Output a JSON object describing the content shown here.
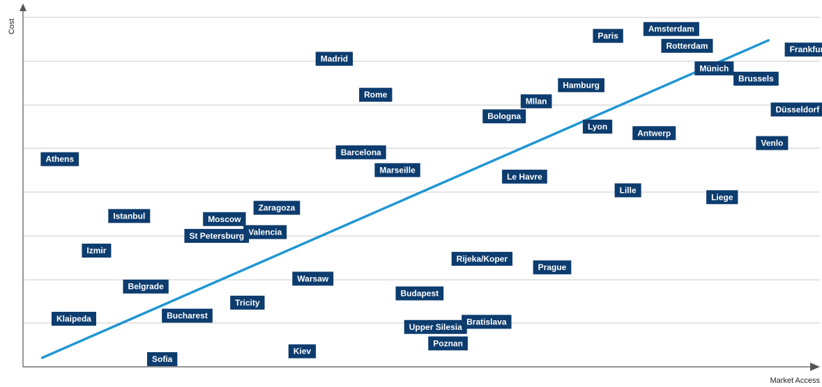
{
  "chart_data": {
    "type": "scatter",
    "title": "",
    "xlabel": "Market Access",
    "ylabel": "Cost",
    "xlim": [
      0,
      100
    ],
    "ylim": [
      0,
      100
    ],
    "grid": "horizontal",
    "colors": {
      "label_bg": "#0d3c6e",
      "trend": "#1f96d3",
      "grid": "#c8c8c8",
      "axis": "#555555"
    },
    "points": [
      {
        "name": "Amsterdam",
        "x": 78.8,
        "y": 96.4
      },
      {
        "name": "Paris",
        "x": 72.3,
        "y": 94.4
      },
      {
        "name": "Rotterdam",
        "x": 81.1,
        "y": 91.5
      },
      {
        "name": "Frankfurt",
        "x": 97.0,
        "y": 90.4
      },
      {
        "name": "Madrid",
        "x": 36.6,
        "y": 87.7
      },
      {
        "name": "Münich",
        "x": 85.4,
        "y": 84.9
      },
      {
        "name": "Brussels",
        "x": 90.4,
        "y": 81.9
      },
      {
        "name": "Hamburg",
        "x": 67.8,
        "y": 80.0
      },
      {
        "name": "Rome",
        "x": 42.2,
        "y": 77.2
      },
      {
        "name": "MIlan",
        "x": 63.0,
        "y": 75.3
      },
      {
        "name": "Düsseldorf",
        "x": 95.2,
        "y": 72.9
      },
      {
        "name": "Bologna",
        "x": 58.1,
        "y": 70.9
      },
      {
        "name": "Lyon",
        "x": 71.0,
        "y": 67.9
      },
      {
        "name": "Antwerp",
        "x": 77.4,
        "y": 66.0
      },
      {
        "name": "Venlo",
        "x": 93.3,
        "y": 63.1
      },
      {
        "name": "Barcelona",
        "x": 39.2,
        "y": 60.4
      },
      {
        "name": "Athens",
        "x": 1.2,
        "y": 58.4
      },
      {
        "name": "Marseille",
        "x": 44.2,
        "y": 55.2
      },
      {
        "name": "Le Havre",
        "x": 60.6,
        "y": 53.3
      },
      {
        "name": "Lille",
        "x": 75.1,
        "y": 49.3
      },
      {
        "name": "Liege",
        "x": 86.9,
        "y": 47.3
      },
      {
        "name": "Zaragoza",
        "x": 28.6,
        "y": 44.2
      },
      {
        "name": "Istanbul",
        "x": 9.9,
        "y": 41.8
      },
      {
        "name": "Moscow",
        "x": 22.1,
        "y": 40.9
      },
      {
        "name": "Valencia",
        "x": 27.3,
        "y": 37.1
      },
      {
        "name": "St Petersburg",
        "x": 19.7,
        "y": 36.0
      },
      {
        "name": "Izmir",
        "x": 6.5,
        "y": 31.7
      },
      {
        "name": "Rijeka/Koper",
        "x": 54.1,
        "y": 29.3
      },
      {
        "name": "Prague",
        "x": 64.6,
        "y": 26.8
      },
      {
        "name": "Warsaw",
        "x": 33.6,
        "y": 23.5
      },
      {
        "name": "Belgrade",
        "x": 11.8,
        "y": 21.2
      },
      {
        "name": "Budapest",
        "x": 46.9,
        "y": 19.2
      },
      {
        "name": "Tricity",
        "x": 25.6,
        "y": 16.5
      },
      {
        "name": "Bucharest",
        "x": 16.8,
        "y": 12.7
      },
      {
        "name": "Klaipeda",
        "x": 2.6,
        "y": 11.8
      },
      {
        "name": "Bratislava",
        "x": 55.4,
        "y": 10.9
      },
      {
        "name": "Upper Silesia",
        "x": 48.0,
        "y": 9.4
      },
      {
        "name": "Poznan",
        "x": 51.1,
        "y": 4.6
      },
      {
        "name": "Kiev",
        "x": 33.1,
        "y": 2.3
      },
      {
        "name": "Sofia",
        "x": 14.9,
        "y": 0.0
      }
    ],
    "trend": {
      "from": [
        1.4,
        0.4
      ],
      "to": [
        94.9,
        93.1
      ]
    }
  }
}
